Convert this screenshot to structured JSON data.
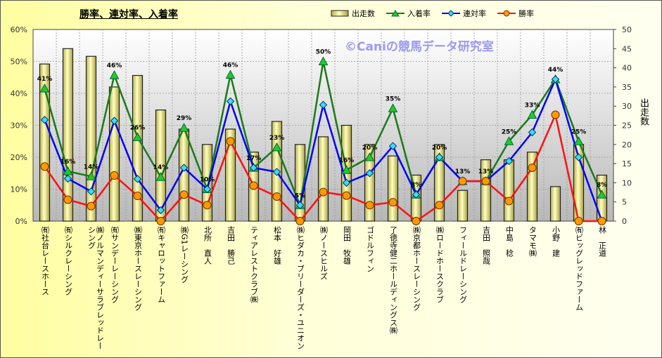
{
  "chart_data": {
    "type": "bar+line",
    "title": "勝率、連対率、入着率",
    "watermark": "©Caniの競馬データ研究室",
    "categories": [
      "㈲社台レースホース",
      "㈲シルクレーシング",
      "㈱ノルマンディーサラブレッドレーシング",
      "㈲サンデーレーシング",
      "㈱東京ホースレーシング",
      "㈲キャロットファーム",
      "㈱G1レーシング",
      "北所　直人",
      "吉田　勝己",
      "ティアレストクラブ㈱",
      "松本　好雄",
      "㈱ヒダカ・ブリーダーズ・ユニオン",
      "㈱ノースヒルズ",
      "岡田　牧雄",
      "ゴドルフィン",
      "了徳寺健二ホールディングス㈱",
      "㈱京都ホースレーシング",
      "㈱ロードホースクラブ",
      "フィールドレーシング",
      "吉田　照哉",
      "中島　稔",
      "タマモ㈱",
      "小野　建",
      "㈲ビッグレッドファーム",
      "林　正道"
    ],
    "series": [
      {
        "name": "出走数",
        "type": "bar",
        "axis": "right",
        "color": "#f0ec90",
        "values": [
          41,
          45,
          43,
          35,
          38,
          29,
          24,
          20,
          24,
          18,
          26,
          20,
          22,
          25,
          20,
          17,
          12,
          20,
          8,
          16,
          16,
          18,
          9,
          20,
          12
        ]
      },
      {
        "name": "入着率",
        "type": "line",
        "axis": "left",
        "color": "#1a7a1a",
        "marker": "triangle",
        "marker_color": "#22cc22",
        "values": [
          41.5,
          15.6,
          14.0,
          45.7,
          26.3,
          13.8,
          29.2,
          10.0,
          45.8,
          16.7,
          23.1,
          5.0,
          50.0,
          16.0,
          20.0,
          35.3,
          8.3,
          20.0,
          12.5,
          12.5,
          25.0,
          33.3,
          44.4,
          25.0,
          8.3
        ]
      },
      {
        "name": "連対率",
        "type": "line",
        "axis": "left",
        "color": "#0000ff",
        "marker": "diamond",
        "marker_color": "#33e0ff",
        "values": [
          31.7,
          13.3,
          9.3,
          31.4,
          13.2,
          3.4,
          16.7,
          10.0,
          37.5,
          16.7,
          15.4,
          5.0,
          36.4,
          12.0,
          15.0,
          23.5,
          8.3,
          20.0,
          12.5,
          12.5,
          18.8,
          27.8,
          44.4,
          20.0,
          0
        ]
      },
      {
        "name": "勝率",
        "type": "line",
        "axis": "left",
        "color": "#ff1010",
        "marker": "circle",
        "marker_color": "#ff9900",
        "values": [
          17.1,
          6.7,
          4.7,
          14.3,
          7.9,
          0,
          8.3,
          5.0,
          25.0,
          11.1,
          7.7,
          0,
          9.1,
          8.0,
          5.0,
          5.9,
          0,
          5.0,
          12.5,
          12.5,
          6.3,
          16.7,
          33.3,
          0,
          0
        ]
      }
    ],
    "data_labels": [
      "41%",
      "16%",
      "14%",
      "46%",
      "26%",
      "14%",
      "29%",
      "10%",
      "46%",
      "17%",
      "23%",
      "5%",
      "50%",
      "16%",
      "20%",
      "35%",
      "8%",
      "20%",
      "13%",
      "13%",
      "25%",
      "33%",
      "44%",
      "25%",
      "8%"
    ],
    "ylim_left": [
      0,
      60
    ],
    "yticks_left": [
      "0%",
      "10%",
      "20%",
      "30%",
      "40%",
      "50%",
      "60%"
    ],
    "ylim_right": [
      0,
      50
    ],
    "yticks_right": [
      "0",
      "5",
      "10",
      "15",
      "20",
      "25",
      "30",
      "35",
      "40",
      "45",
      "50"
    ],
    "ylabel_right": "出走数",
    "grid": true,
    "legend_position": "top"
  }
}
